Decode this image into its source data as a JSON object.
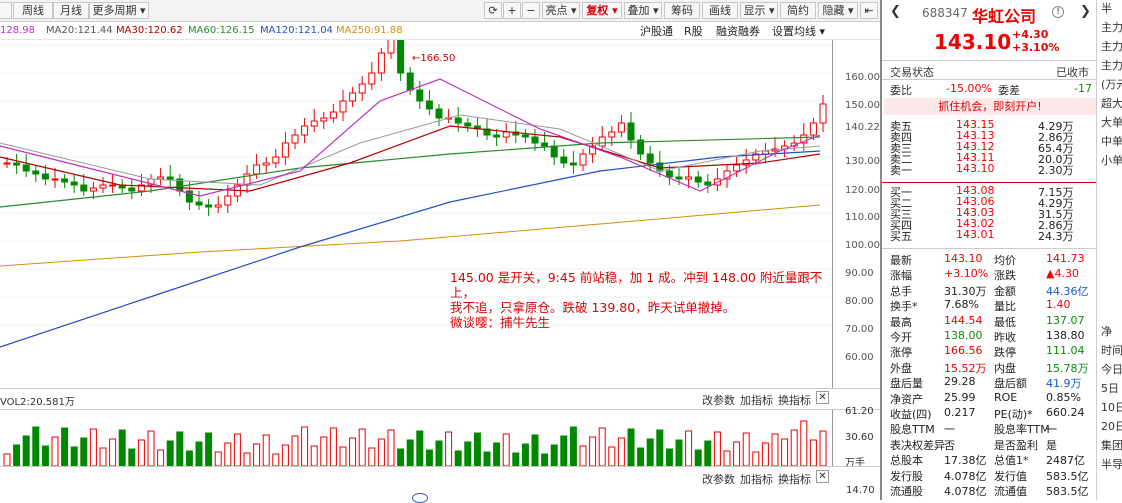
{
  "toolbar": {
    "left": [
      "周线",
      "月线",
      "更多周期 ▾"
    ],
    "right": [
      "亮点 ▾",
      "复权 ▾",
      "叠加 ▾",
      "筹码",
      "画线",
      "显示 ▾",
      "简约",
      "隐藏 ▾"
    ]
  },
  "ma": [
    {
      "t": "128.98",
      "c": "#222"
    },
    {
      "t": "MA20:121.44",
      "c": "#555"
    },
    {
      "t": "MA30:120.62",
      "c": "#b00000"
    },
    {
      "t": "MA60:126.15",
      "c": "#2a8a2a"
    },
    {
      "t": "MA120:121.04",
      "c": "#2050c0"
    },
    {
      "t": "MA250:91.88",
      "c": "#d09000"
    }
  ],
  "nav": [
    "沪股通",
    "R股",
    "融资融券",
    "设置均线 ▾"
  ],
  "yticks": [
    "160.00",
    "150.00",
    "140.22",
    "130.00",
    "120.00",
    "110.00",
    "100.00",
    "90.00",
    "80.00",
    "70.00",
    "60.00"
  ],
  "high_marker": "166.50",
  "annotation": [
    "145.00 是开关，9:45 前站稳，加 1 成。冲到 148.00 附近量跟不上，",
    "我不追，只拿原仓。跌破 139.80，昨天试单撤掉。",
    "微谈嘤：捕牛先生"
  ],
  "vol": {
    "label": "VOL2:20.581万",
    "buttons": [
      "改参数",
      "加指标",
      "换指标"
    ],
    "ticks": [
      "61.20",
      "30.60",
      "万手"
    ]
  },
  "lower": {
    "ticks": [
      "14.70"
    ],
    "buttons": [
      "改参数",
      "加指标",
      "换指标"
    ]
  },
  "stock": {
    "code": "688347",
    "name": "华虹公司",
    "price": "143.10",
    "chg": "+4.30",
    "pct": "+3.10%"
  },
  "status": {
    "label": "交易状态",
    "value": "已收市"
  },
  "wb": {
    "l1": "委比",
    "v1": "-15.00%",
    "l2": "委差",
    "v2": "-17"
  },
  "promo": "抓住机会，即刻开户!",
  "asks": [
    [
      "卖五",
      "143.15",
      "4.29万"
    ],
    [
      "卖四",
      "143.13",
      "2.86万"
    ],
    [
      "卖三",
      "143.12",
      "65.4万"
    ],
    [
      "卖二",
      "143.11",
      "20.0万"
    ],
    [
      "卖一",
      "143.10",
      "2.30万"
    ]
  ],
  "bids": [
    [
      "买一",
      "143.08",
      "7.15万"
    ],
    [
      "买二",
      "143.06",
      "4.29万"
    ],
    [
      "买三",
      "143.03",
      "31.5万"
    ],
    [
      "买四",
      "143.02",
      "2.86万"
    ],
    [
      "买五",
      "143.01",
      "24.3万"
    ]
  ],
  "stats": [
    [
      "最新",
      "143.10",
      "red",
      "均价",
      "141.73",
      "red"
    ],
    [
      "涨幅",
      "+3.10%",
      "red",
      "涨跌",
      "▲4.30",
      "red"
    ],
    [
      "总手",
      "31.30万",
      "black",
      "金额",
      "44.36亿",
      "blue"
    ],
    [
      "换手*",
      "7.68%",
      "black",
      "量比",
      "1.40",
      "red"
    ],
    [
      "最高",
      "144.54",
      "red",
      "最低",
      "137.07",
      "green"
    ],
    [
      "今开",
      "138.00",
      "green",
      "昨收",
      "138.80",
      "black"
    ],
    [
      "涨停",
      "166.56",
      "red",
      "跌停",
      "111.04",
      "green"
    ],
    [
      "外盘",
      "15.52万",
      "red",
      "内盘",
      "15.78万",
      "green"
    ],
    [
      "盘后量",
      "29.28",
      "black",
      "盘后额",
      "41.9万",
      "blue"
    ],
    [
      "净资产",
      "25.99",
      "black",
      "ROE",
      "0.85%",
      "black"
    ],
    [
      "收益(四)",
      "0.217",
      "black",
      "PE(动)*",
      "660.24",
      "black"
    ],
    [
      "股息TTM",
      "一",
      "black",
      "股息率TTM",
      "一",
      "black"
    ],
    [
      "表决权差异",
      "否",
      "black",
      "是否盈利",
      "是",
      "black"
    ],
    [
      "总股本",
      "17.38亿",
      "black",
      "总值1*",
      "2487亿",
      "black"
    ],
    [
      "发行股",
      "4.078亿",
      "black",
      "发行值",
      "583.5亿",
      "black"
    ],
    [
      "流通股",
      "4.078亿",
      "black",
      "流通值",
      "583.5亿",
      "black"
    ]
  ],
  "edge": [
    "半",
    "主力",
    "主力",
    "主力",
    "(万元",
    "超大",
    "大单",
    "中单",
    "小单",
    "",
    "",
    "",
    "",
    "",
    "",
    "",
    "",
    "净",
    "时间",
    "今日",
    "5日",
    "10日",
    "20日",
    "集团",
    "半导"
  ]
}
